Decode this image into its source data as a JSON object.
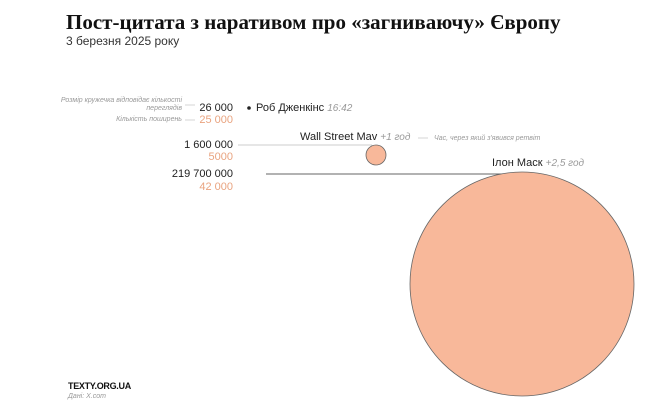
{
  "title": "Пост-цитата з наративом про «загниваючу» Європу",
  "subtitle": "3 березня 2025 року",
  "legend": {
    "size_note": "Розмір кружечка відповідає кількості переглядів",
    "shares_note": "Кількість поширень",
    "time_note": "Час, через який з'явився ретвіт"
  },
  "colors": {
    "circle": "#f8b89a",
    "shares": "#e9a37f"
  },
  "chart_data": {
    "type": "bubble",
    "size_metric": "views",
    "series": [
      {
        "name": "Роб Дженкінс",
        "time": "16:42",
        "views": 26000,
        "views_label": "26 000",
        "shares": 25000,
        "shares_label": "25 000"
      },
      {
        "name": "Wall Street Mav",
        "time": "+1 год",
        "views": 1600000,
        "views_label": "1 600 000",
        "shares": 5000,
        "shares_label": "5000"
      },
      {
        "name": "Ілон Маск",
        "time": "+2,5 год",
        "views": 219700000,
        "views_label": "219 700 000",
        "shares": 42000,
        "shares_label": "42 000"
      }
    ]
  },
  "footer": {
    "brand": "TEXTY.ORG.UA",
    "source": "Дані: X.com"
  }
}
